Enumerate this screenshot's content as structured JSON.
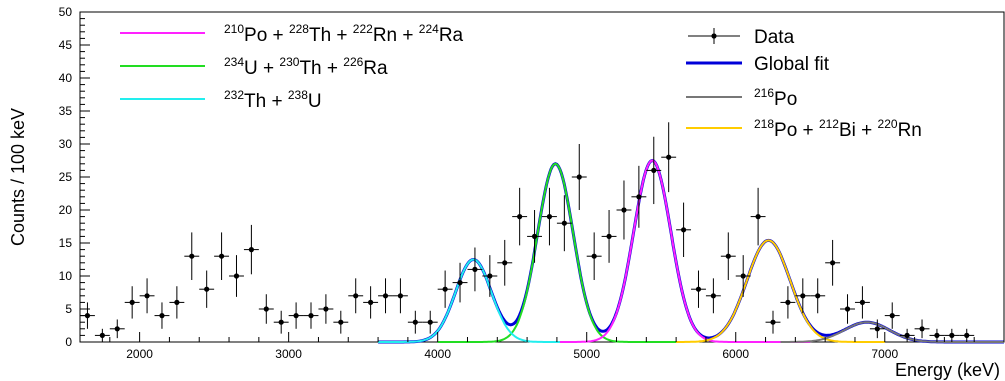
{
  "chart_data": {
    "type": "line",
    "xlabel": "Energy (keV)",
    "ylabel": "Counts / 100 keV",
    "xlim": [
      1600,
      7800
    ],
    "ylim": [
      0,
      50
    ],
    "x_ticks": [
      2000,
      3000,
      4000,
      5000,
      6000,
      7000
    ],
    "y_ticks": [
      0,
      5,
      10,
      15,
      20,
      25,
      30,
      35,
      40,
      45,
      50
    ],
    "grid": false,
    "bin_width": 100,
    "data": {
      "name": "Data",
      "x": [
        1650,
        1750,
        1850,
        1950,
        2050,
        2150,
        2250,
        2350,
        2450,
        2550,
        2650,
        2750,
        2850,
        2950,
        3050,
        3150,
        3250,
        3350,
        3450,
        3550,
        3650,
        3750,
        3850,
        3950,
        4050,
        4150,
        4250,
        4350,
        4450,
        4550,
        4650,
        4750,
        4850,
        4950,
        5050,
        5150,
        5250,
        5350,
        5450,
        5550,
        5650,
        5750,
        5850,
        5950,
        6050,
        6150,
        6250,
        6350,
        6450,
        6550,
        6650,
        6750,
        6850,
        6950,
        7050,
        7150,
        7250,
        7350,
        7450,
        7550,
        7650
      ],
      "y": [
        4,
        1,
        2,
        6,
        7,
        4,
        6,
        13,
        8,
        13,
        10,
        14,
        5,
        3,
        4,
        4,
        5,
        3,
        7,
        6,
        7,
        7,
        3,
        3,
        8,
        9,
        11,
        10,
        12,
        19,
        16,
        19,
        18,
        25,
        13,
        16,
        20,
        22,
        26,
        28,
        17,
        8,
        7,
        13,
        10,
        19,
        3,
        6,
        7,
        7,
        12,
        5,
        6,
        2,
        4,
        1,
        2,
        1,
        1,
        1,
        0
      ],
      "error_type": "poisson",
      "color": "#000000"
    },
    "series": [
      {
        "name": "Global fit",
        "color": "#0000d9",
        "components": [
          {
            "A": 12.5,
            "mu": 4240,
            "sigma": 120
          },
          {
            "A": 27.0,
            "mu": 4790,
            "sigma": 120
          },
          {
            "A": 27.5,
            "mu": 5440,
            "sigma": 125
          },
          {
            "A": 15.4,
            "mu": 6220,
            "sigma": 145
          },
          {
            "A": 3.0,
            "mu": 6880,
            "sigma": 150
          }
        ],
        "range": [
          3600,
          7800
        ]
      },
      {
        "name": "234U + 230Th + 226Ra",
        "color": "#22dd22",
        "components": [
          {
            "A": 27.0,
            "mu": 4790,
            "sigma": 120
          }
        ],
        "range": [
          4000,
          5600
        ]
      },
      {
        "name": "210Po + 228Th + 222Rn + 224Ra",
        "color": "#ff22ff",
        "components": [
          {
            "A": 27.5,
            "mu": 5440,
            "sigma": 125
          }
        ],
        "range": [
          4800,
          6500
        ]
      },
      {
        "name": "232Th + 238U",
        "color": "#22eeee",
        "components": [
          {
            "A": 12.5,
            "mu": 4240,
            "sigma": 120
          }
        ],
        "range": [
          3600,
          4820
        ]
      },
      {
        "name": "218Po + 212Bi + 220Rn",
        "color": "#ffcc00",
        "components": [
          {
            "A": 15.4,
            "mu": 6220,
            "sigma": 145
          }
        ],
        "range": [
          5600,
          7000
        ]
      },
      {
        "name": "216Po",
        "color": "#777777",
        "components": [
          {
            "A": 3.0,
            "mu": 6880,
            "sigma": 150
          }
        ],
        "range": [
          6300,
          7800
        ]
      }
    ]
  },
  "legend_left": [
    {
      "parts": [
        [
          "210",
          "Po + "
        ],
        [
          "228",
          "Th + "
        ],
        [
          "222",
          "Rn + "
        ],
        [
          "224",
          "Ra"
        ]
      ],
      "color": "#ff22ff"
    },
    {
      "parts": [
        [
          "234",
          "U   + "
        ],
        [
          "230",
          "Th + "
        ],
        [
          "226",
          "Ra"
        ]
      ],
      "color": "#22dd22"
    },
    {
      "parts": [
        [
          "232",
          "Th + "
        ],
        [
          "238",
          "U"
        ]
      ],
      "color": "#22eeee"
    }
  ],
  "legend_right": [
    {
      "label": "Data",
      "kind": "marker",
      "color": "#000000"
    },
    {
      "label": "Global fit",
      "kind": "line",
      "color": "#0000d9"
    },
    {
      "parts": [
        [
          "216",
          "Po"
        ]
      ],
      "kind": "line",
      "color": "#777777"
    },
    {
      "parts": [
        [
          "218",
          "Po + "
        ],
        [
          "212",
          "Bi  + "
        ],
        [
          "220",
          "Rn"
        ]
      ],
      "kind": "line",
      "color": "#ffcc00"
    }
  ]
}
